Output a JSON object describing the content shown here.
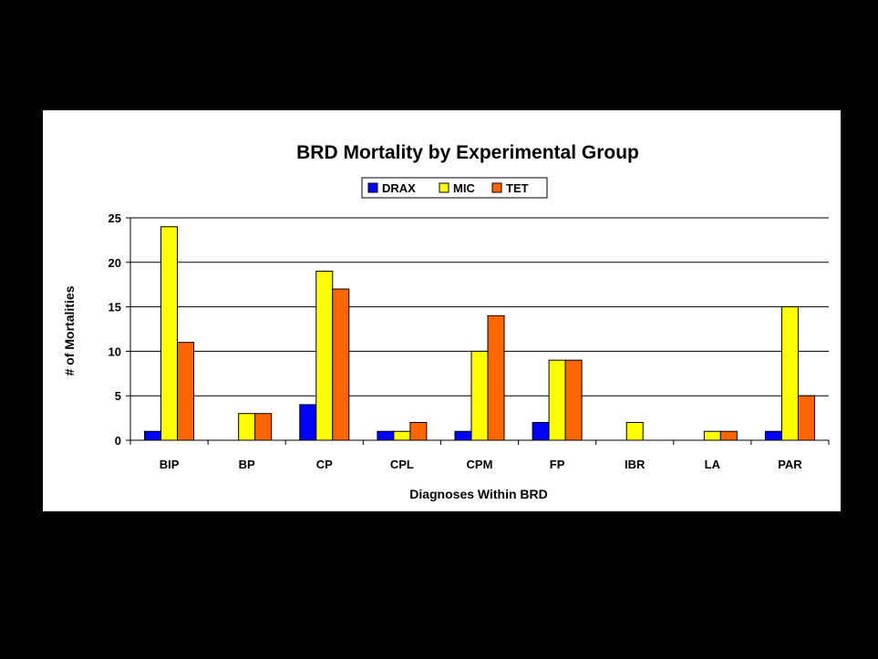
{
  "chart_data": {
    "type": "bar",
    "title": "BRD Mortality by Experimental Group",
    "xlabel": "Diagnoses Within BRD",
    "ylabel": "# of Mortalities",
    "ylim": [
      0,
      25
    ],
    "yticks": [
      0,
      5,
      10,
      15,
      20,
      25
    ],
    "grid": true,
    "legend_position": "top-center",
    "categories": [
      "BIP",
      "BP",
      "CP",
      "CPL",
      "CPM",
      "FP",
      "IBR",
      "LA",
      "PAR"
    ],
    "series": [
      {
        "name": "DRAX",
        "color": "#0000FF",
        "values": [
          1,
          0,
          4,
          1,
          1,
          2,
          0,
          0,
          1
        ]
      },
      {
        "name": "MIC",
        "color": "#FFFF00",
        "values": [
          24,
          3,
          19,
          1,
          10,
          9,
          2,
          1,
          15
        ]
      },
      {
        "name": "TET",
        "color": "#FF6600",
        "values": [
          11,
          3,
          17,
          2,
          14,
          9,
          0,
          1,
          5
        ]
      }
    ]
  }
}
